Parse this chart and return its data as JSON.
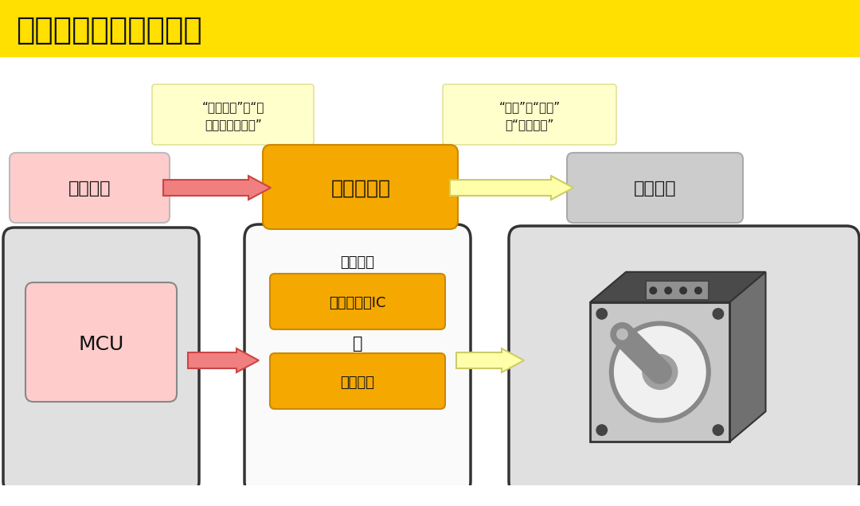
{
  "title": "典型驱动系统的方框图",
  "title_bg": "#FFE000",
  "bg_color": "#FFFFFF",
  "label_control": "控制单元",
  "label_driver": "电机驱动器",
  "label_motor": "步进电机",
  "label_mcu": "MCU",
  "label_drive_device": "驱动装置",
  "label_ic": "电机驱动器IC",
  "label_discrete": "分立器件",
  "label_or": "或",
  "label_note1_line1": "“重复次数”和“一",
  "label_note1_line2": "个步距角的时间”",
  "label_note2_line1": "“方向”、“大小”",
  "label_note2_line2": "和“电流合成”",
  "color_pink_box": "#FFCCCC",
  "color_orange_box": "#F5A800",
  "color_gray_box": "#CCCCCC",
  "color_light_gray_outer": "#E0E0E0",
  "color_white_outer": "#FFFFFF",
  "color_yellow_note": "#FFFFCC",
  "color_arrow_red_fill": "#F08080",
  "color_arrow_red_edge": "#CC4444",
  "color_arrow_yellow_fill": "#FFFFAA",
  "color_arrow_yellow_edge": "#CCCC66"
}
